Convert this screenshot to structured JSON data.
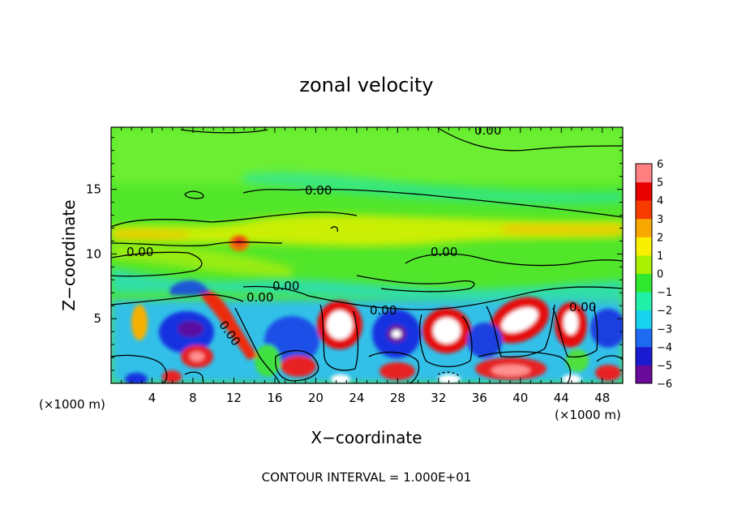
{
  "chart_data": {
    "type": "heatmap",
    "title": "zonal velocity",
    "xlabel": "X−coordinate",
    "ylabel": "Z−coordinate",
    "x_unit_left": "(×1000 m)",
    "x_unit_right": "(×1000 m)",
    "footer": "CONTOUR INTERVAL = 1.000E+01",
    "xlim": [
      0,
      50
    ],
    "ylim": [
      0,
      19.8
    ],
    "x_ticks": [
      4,
      8,
      12,
      16,
      20,
      24,
      28,
      32,
      36,
      40,
      44,
      48
    ],
    "x_tick_labels": [
      "4",
      "8",
      "12",
      "16",
      "20",
      "24",
      "28",
      "32",
      "36",
      "40",
      "44",
      "48"
    ],
    "y_ticks": [
      5,
      10,
      15
    ],
    "y_tick_labels": [
      "5",
      "10",
      "15"
    ],
    "colorbar": {
      "min": -6,
      "max": 6,
      "ticks": [
        6,
        5,
        4,
        3,
        2,
        1,
        0,
        -1,
        -2,
        -3,
        -4,
        -5,
        -6
      ],
      "tick_labels": [
        "6",
        "5",
        "4",
        "3",
        "2",
        "1",
        "0",
        "−1",
        "−2",
        "−3",
        "−4",
        "−5",
        "−6"
      ],
      "colors": [
        "#6a0a9a",
        "#1a1ad0",
        "#1e6af0",
        "#18d2f0",
        "#20f0a8",
        "#30e830",
        "#a8f000",
        "#f8f000",
        "#f8a800",
        "#f83c00",
        "#e80000",
        "#ff8080"
      ]
    },
    "contour_labels": [
      "0.00",
      "0.00",
      "0.00",
      "0.00",
      "0.00",
      "0.00",
      "0.00",
      "0.00",
      "0.00"
    ],
    "features": [
      {
        "x": 23,
        "z": 4.5,
        "v": 6.5
      },
      {
        "x": 33,
        "z": 4.5,
        "v": 6.5
      },
      {
        "x": 40,
        "z": 5.2,
        "v": 6.5
      },
      {
        "x": 45,
        "z": 4.7,
        "v": 5.5
      },
      {
        "x": 28,
        "z": 4.0,
        "v": -6
      },
      {
        "x": 8,
        "z": 4.4,
        "v": -6
      },
      {
        "x": 20.5,
        "z": 1.6,
        "v": -5.5
      },
      {
        "x": 38,
        "z": 1.3,
        "v": 5
      },
      {
        "x": 8,
        "z": 2.0,
        "v": 4
      },
      {
        "x": 18,
        "z": 1.5,
        "v": 4
      },
      {
        "x": 11,
        "z": 11.0,
        "v": 4
      }
    ]
  }
}
